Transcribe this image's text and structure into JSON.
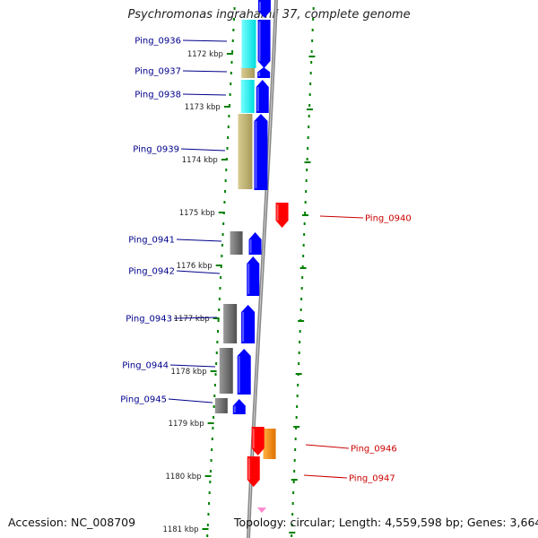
{
  "title": "Psychromonas ingrahamii 37, complete genome",
  "footer": {
    "accession": "Accession: NC_008709",
    "summary": "Topology: circular; Length: 4,559,598 bp; Genes: 3,664"
  },
  "colors": {
    "cds": "#0000ff",
    "rna": "#ff0000",
    "label_left": "#00008b",
    "label_right": "#cc0000",
    "ruler_dots": "#008000",
    "backbone": "#888888"
  },
  "scale_labels": [
    "1172 kbp",
    "1173 kbp",
    "1174 kbp",
    "1175 kbp",
    "1176 kbp",
    "1177 kbp",
    "1178 kbp",
    "1179 kbp",
    "1180 kbp",
    "1181 kbp"
  ],
  "genes": [
    {
      "name": "Ping_0936",
      "side": "left"
    },
    {
      "name": "Ping_0937",
      "side": "left"
    },
    {
      "name": "Ping_0938",
      "side": "left"
    },
    {
      "name": "Ping_0939",
      "side": "left"
    },
    {
      "name": "Ping_0940",
      "side": "right"
    },
    {
      "name": "Ping_0941",
      "side": "left"
    },
    {
      "name": "Ping_0942",
      "side": "left"
    },
    {
      "name": "Ping_0943",
      "side": "left"
    },
    {
      "name": "Ping_0944",
      "side": "left"
    },
    {
      "name": "Ping_0945",
      "side": "left"
    },
    {
      "name": "Ping_0946",
      "side": "right"
    },
    {
      "name": "Ping_0947",
      "side": "right"
    }
  ]
}
